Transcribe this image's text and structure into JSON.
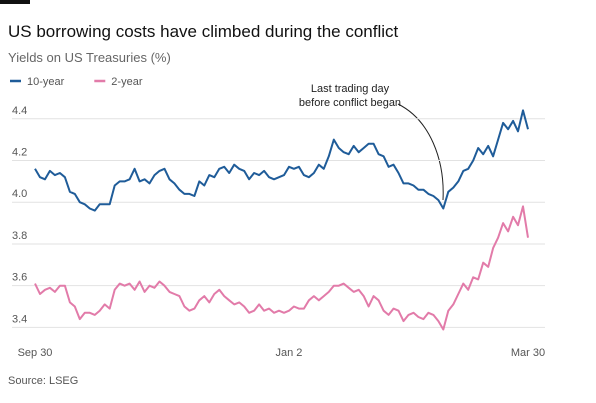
{
  "chart_data": {
    "type": "line",
    "title": "US borrowing costs have climbed during the conflict",
    "subtitle": "Yields on US Treasuries (%)",
    "source": "Source: LSEG",
    "annotation": [
      "Last trading day",
      "before conflict began"
    ],
    "categories": [
      "Sep 30",
      null,
      null,
      null,
      null,
      null,
      null,
      null,
      null,
      null,
      null,
      null,
      null,
      null,
      null,
      null,
      null,
      null,
      null,
      null,
      null,
      null,
      null,
      null,
      null,
      null,
      null,
      null,
      null,
      null,
      null,
      null,
      null,
      null,
      null,
      null,
      null,
      null,
      null,
      null,
      null,
      null,
      null,
      null,
      null,
      null,
      null,
      null,
      null,
      null,
      null,
      "Jan 2",
      null,
      null,
      null,
      null,
      null,
      null,
      null,
      null,
      null,
      null,
      null,
      null,
      null,
      null,
      null,
      null,
      null,
      null,
      null,
      null,
      null,
      null,
      null,
      null,
      null,
      null,
      null,
      null,
      null,
      null,
      null,
      null,
      null,
      null,
      null,
      null,
      null,
      null,
      null,
      null,
      null,
      null,
      null,
      null,
      null,
      null,
      null,
      "Mar 30"
    ],
    "series": [
      {
        "name": "10-year",
        "color": "#1f5c99",
        "values": [
          4.16,
          4.12,
          4.11,
          4.15,
          4.13,
          4.14,
          4.12,
          4.05,
          4.04,
          4.0,
          3.99,
          3.97,
          3.96,
          3.99,
          3.99,
          3.99,
          4.08,
          4.1,
          4.1,
          4.11,
          4.16,
          4.1,
          4.11,
          4.09,
          4.13,
          4.15,
          4.16,
          4.11,
          4.09,
          4.06,
          4.04,
          4.04,
          4.03,
          4.1,
          4.08,
          4.13,
          4.12,
          4.16,
          4.17,
          4.14,
          4.18,
          4.16,
          4.15,
          4.11,
          4.14,
          4.13,
          4.15,
          4.12,
          4.11,
          4.12,
          4.13,
          4.17,
          4.16,
          4.17,
          4.13,
          4.12,
          4.14,
          4.18,
          4.16,
          4.22,
          4.3,
          4.26,
          4.24,
          4.23,
          4.27,
          4.24,
          4.26,
          4.28,
          4.28,
          4.23,
          4.22,
          4.17,
          4.18,
          4.14,
          4.09,
          4.09,
          4.08,
          4.06,
          4.06,
          4.04,
          4.03,
          4.01,
          3.97,
          4.05,
          4.07,
          4.1,
          4.15,
          4.16,
          4.2,
          4.26,
          4.23,
          4.27,
          4.22,
          4.3,
          4.38,
          4.35,
          4.39,
          4.34,
          4.44,
          4.35
        ]
      },
      {
        "name": "2-year",
        "color": "#e27ba9",
        "values": [
          3.61,
          3.56,
          3.58,
          3.59,
          3.57,
          3.6,
          3.6,
          3.52,
          3.5,
          3.44,
          3.47,
          3.47,
          3.46,
          3.48,
          3.51,
          3.49,
          3.58,
          3.61,
          3.6,
          3.61,
          3.58,
          3.62,
          3.57,
          3.6,
          3.59,
          3.62,
          3.6,
          3.57,
          3.56,
          3.55,
          3.5,
          3.48,
          3.49,
          3.53,
          3.55,
          3.52,
          3.56,
          3.58,
          3.55,
          3.53,
          3.51,
          3.52,
          3.5,
          3.47,
          3.48,
          3.51,
          3.48,
          3.49,
          3.47,
          3.48,
          3.47,
          3.48,
          3.5,
          3.49,
          3.49,
          3.53,
          3.55,
          3.53,
          3.55,
          3.57,
          3.6,
          3.6,
          3.61,
          3.59,
          3.57,
          3.58,
          3.55,
          3.5,
          3.55,
          3.53,
          3.48,
          3.46,
          3.49,
          3.48,
          3.43,
          3.46,
          3.47,
          3.45,
          3.44,
          3.47,
          3.46,
          3.43,
          3.39,
          3.48,
          3.51,
          3.56,
          3.61,
          3.58,
          3.64,
          3.63,
          3.71,
          3.69,
          3.78,
          3.83,
          3.9,
          3.86,
          3.93,
          3.89,
          3.98,
          3.83
        ]
      }
    ],
    "ylim": [
      3.33,
      4.49
    ],
    "yticks": [
      3.4,
      3.6,
      3.8,
      {
        "value": 4,
        "label": "4.0"
      },
      4.2,
      4.4
    ],
    "grid": true
  }
}
